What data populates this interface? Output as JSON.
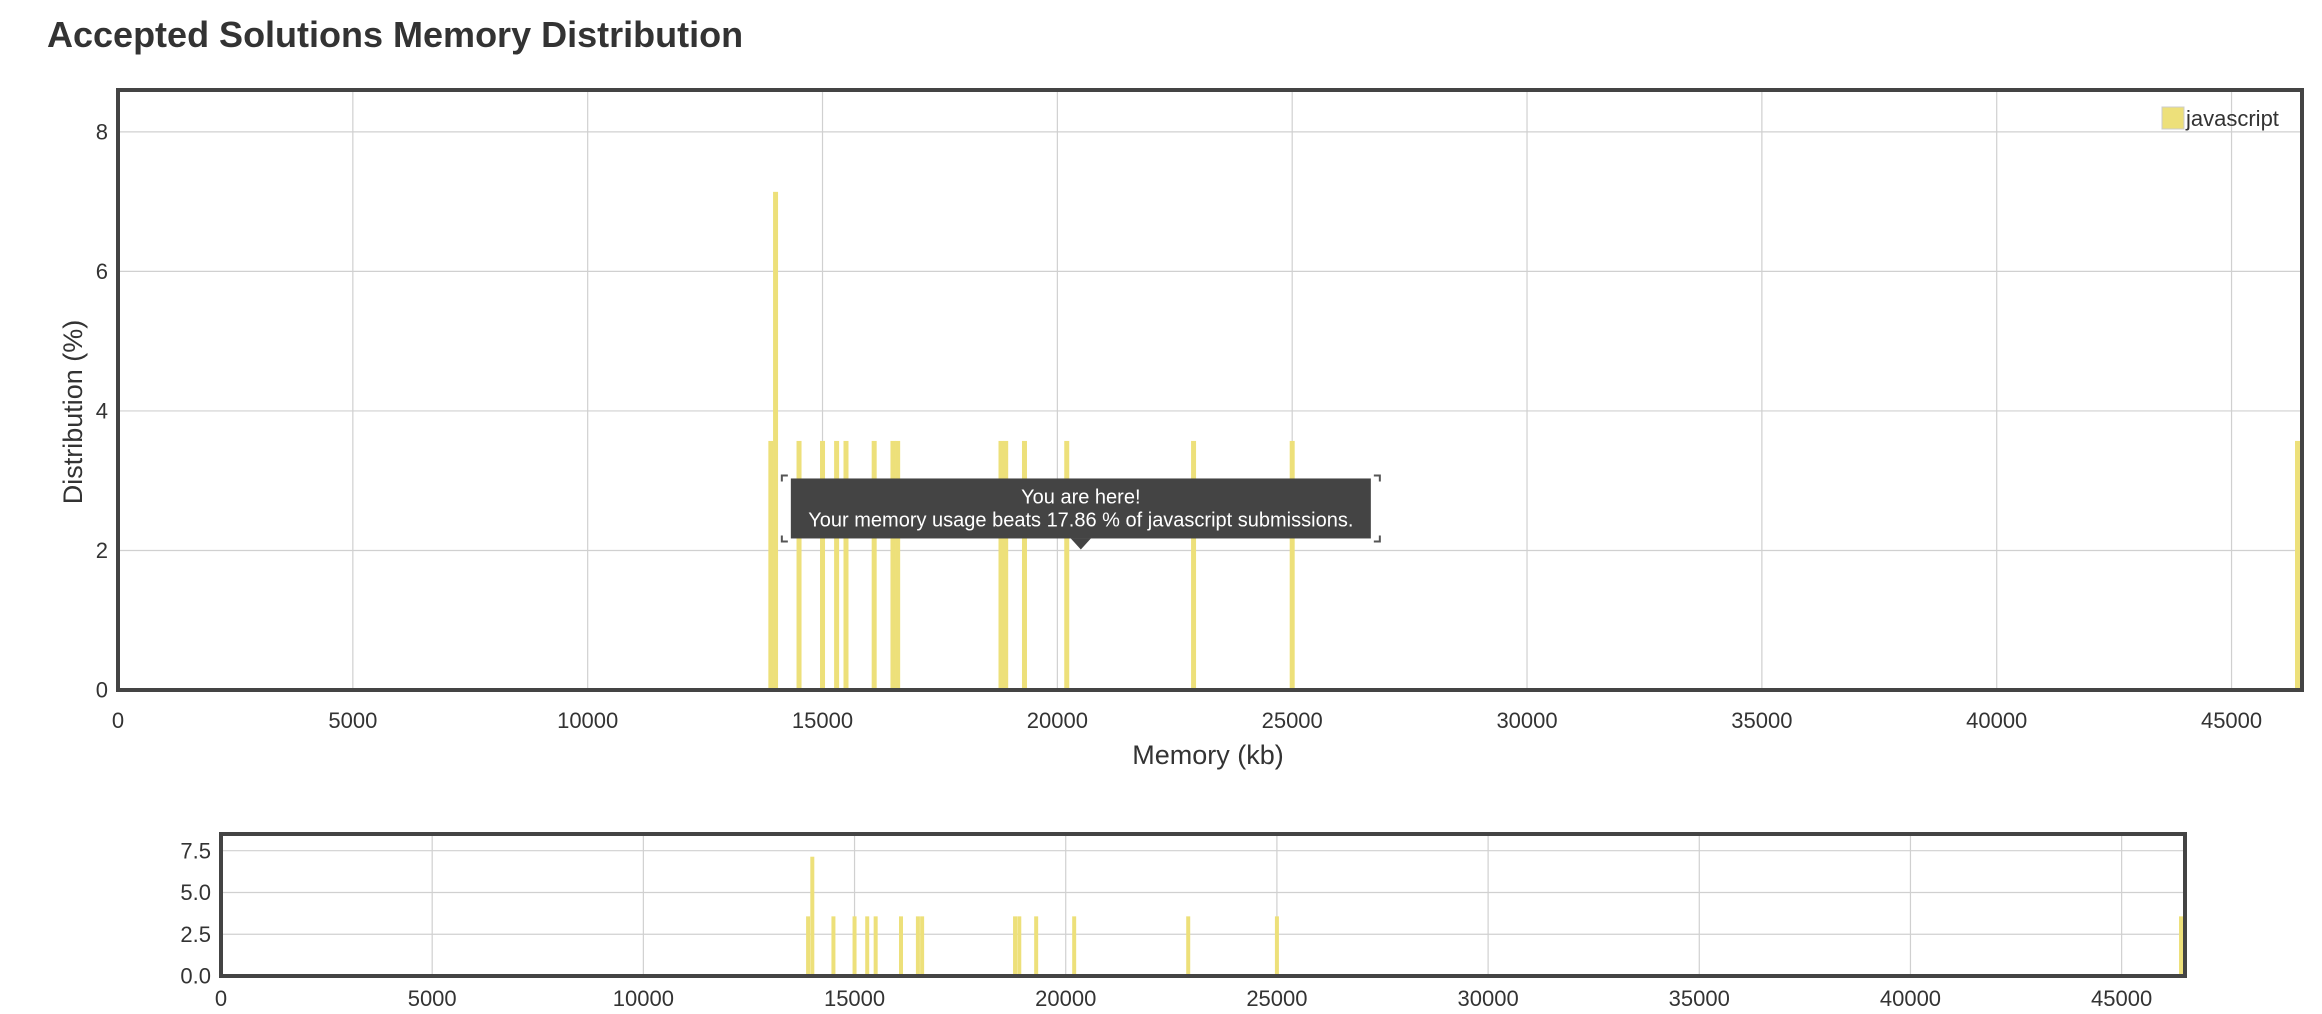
{
  "page": {
    "title": "Accepted Solutions Memory Distribution"
  },
  "tooltip": {
    "line1": "You are here!",
    "line2": "Your memory usage beats 17.86 % of javascript submissions."
  },
  "colors": {
    "bar": "#ede07a",
    "legend_swatch": "#ede07a",
    "grid": "#d0d0d0",
    "frame": "#444444",
    "tooltip_bg": "#444444",
    "tooltip_text": "#ffffff",
    "text": "#333333"
  },
  "chart_data": [
    {
      "type": "bar",
      "role": "main",
      "xlabel": "Memory (kb)",
      "ylabel": "Distribution (%)",
      "xlim": [
        0,
        46500
      ],
      "ylim": [
        0,
        8.6
      ],
      "xticks": [
        "0",
        "5000",
        "10000",
        "15000",
        "20000",
        "25000",
        "30000",
        "35000",
        "40000",
        "45000"
      ],
      "yticks": [
        "0",
        "2",
        "4",
        "6",
        "8"
      ],
      "grid": true,
      "legend_position": "top-right",
      "series": [
        {
          "name": "javascript",
          "x": [
            13900,
            14000,
            14500,
            15000,
            15300,
            15500,
            16100,
            16500,
            16600,
            18800,
            18900,
            19300,
            20200,
            22900,
            25000,
            46500
          ],
          "values": [
            3.57,
            7.14,
            3.57,
            3.57,
            3.57,
            3.57,
            3.57,
            3.57,
            3.57,
            3.57,
            3.57,
            3.57,
            3.57,
            3.57,
            3.57,
            3.57
          ]
        }
      ],
      "annotation": {
        "x": 20500,
        "y": 2.0,
        "text_ref": "tooltip"
      }
    },
    {
      "type": "bar",
      "role": "navigator",
      "xlim": [
        0,
        46500
      ],
      "ylim": [
        0,
        8.5
      ],
      "xticks": [
        "0",
        "5000",
        "10000",
        "15000",
        "20000",
        "25000",
        "30000",
        "35000",
        "40000",
        "45000"
      ],
      "yticks": [
        "0.0",
        "2.5",
        "5.0",
        "7.5"
      ],
      "grid": true,
      "series": [
        {
          "x": [
            13900,
            14000,
            14500,
            15000,
            15300,
            15500,
            16100,
            16500,
            16600,
            18800,
            18900,
            19300,
            20200,
            22900,
            25000,
            46500
          ],
          "values": [
            3.57,
            7.14,
            3.57,
            3.57,
            3.57,
            3.57,
            3.57,
            3.57,
            3.57,
            3.57,
            3.57,
            3.57,
            3.57,
            3.57,
            3.57,
            3.57
          ]
        }
      ]
    }
  ]
}
